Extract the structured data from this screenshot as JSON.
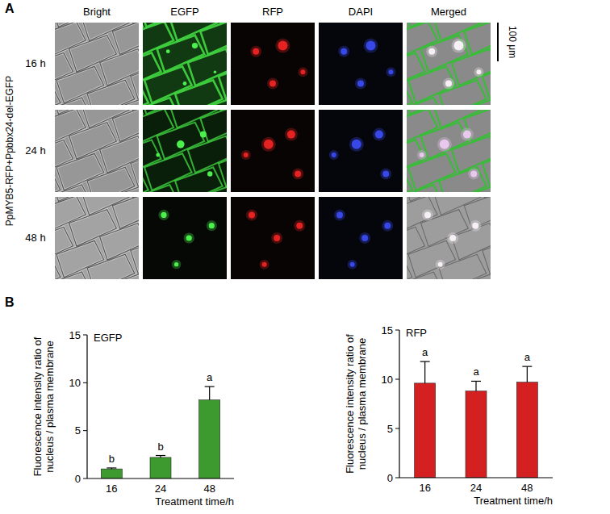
{
  "image_panel": {
    "letter": "A",
    "columns": [
      "Bright",
      "EGFP",
      "RFP",
      "DAPI",
      "Merged"
    ],
    "rows": [
      "16 h",
      "24 h",
      "48 h"
    ],
    "construct": "PpMYB5-RFP+Ppbbx24-del-EGFP",
    "scale_bar": "100 μm"
  },
  "panel_b_letter": "B",
  "chart_data": [
    {
      "type": "bar",
      "title": "EGFP",
      "categories": [
        "16",
        "24",
        "48"
      ],
      "values": [
        1.0,
        2.2,
        8.2
      ],
      "errors": [
        0.1,
        0.2,
        1.4
      ],
      "significance": [
        "b",
        "b",
        "a"
      ],
      "color": "#3d9a2e",
      "xlabel": "Treatment time/h",
      "ylabel": "Fluorescence intensity ratio of nucleus / plasma membrane",
      "ylim": [
        0,
        15
      ],
      "yticks": [
        0,
        5,
        10,
        15
      ]
    },
    {
      "type": "bar",
      "title": "RFP",
      "categories": [
        "16",
        "24",
        "48"
      ],
      "values": [
        9.6,
        8.8,
        9.7
      ],
      "errors": [
        2.2,
        1.0,
        1.6
      ],
      "significance": [
        "a",
        "a",
        "a"
      ],
      "color": "#d42020",
      "xlabel": "Treatment time/h",
      "ylabel": "Fluorescence intensity ratio of nucleus / plasma membrane",
      "ylim": [
        0,
        15
      ],
      "yticks": [
        0,
        5,
        10,
        15
      ]
    }
  ]
}
